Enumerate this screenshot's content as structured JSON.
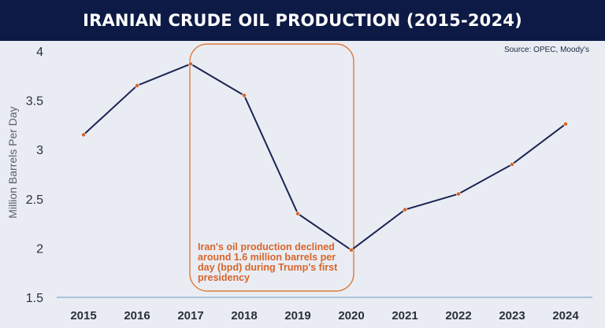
{
  "header": {
    "title": "IRANIAN CRUDE OIL PRODUCTION (2015-2024)"
  },
  "source": "Source: OPEC, Moody's",
  "colors": {
    "line": "#1b2454",
    "marker": "#d9642a",
    "highlight": "#e07a3f",
    "axis": "#8aa6c8",
    "title_bg": "#0d1a45"
  },
  "chart_data": {
    "type": "line",
    "title": "IRANIAN CRUDE OIL PRODUCTION (2015-2024)",
    "ylabel": "Million Barrels Per Day",
    "xlabel": "",
    "x": [
      "2015",
      "2016",
      "2017",
      "2018",
      "2019",
      "2020",
      "2021",
      "2022",
      "2023",
      "2024"
    ],
    "series": [
      {
        "values": [
          3.15,
          3.65,
          3.87,
          3.55,
          2.35,
          1.98,
          2.39,
          2.55,
          2.85,
          3.26
        ]
      }
    ],
    "ylim": [
      1.5,
      4
    ],
    "yticks": [
      "4",
      "3.5",
      "3",
      "2.5",
      "2",
      "1.5"
    ],
    "grid": false,
    "highlight_range": [
      "2017",
      "2020"
    ],
    "annotation": "Iran's oil production declined around 1.6 million barrels per day (bpd) during Trump's first presidency"
  }
}
